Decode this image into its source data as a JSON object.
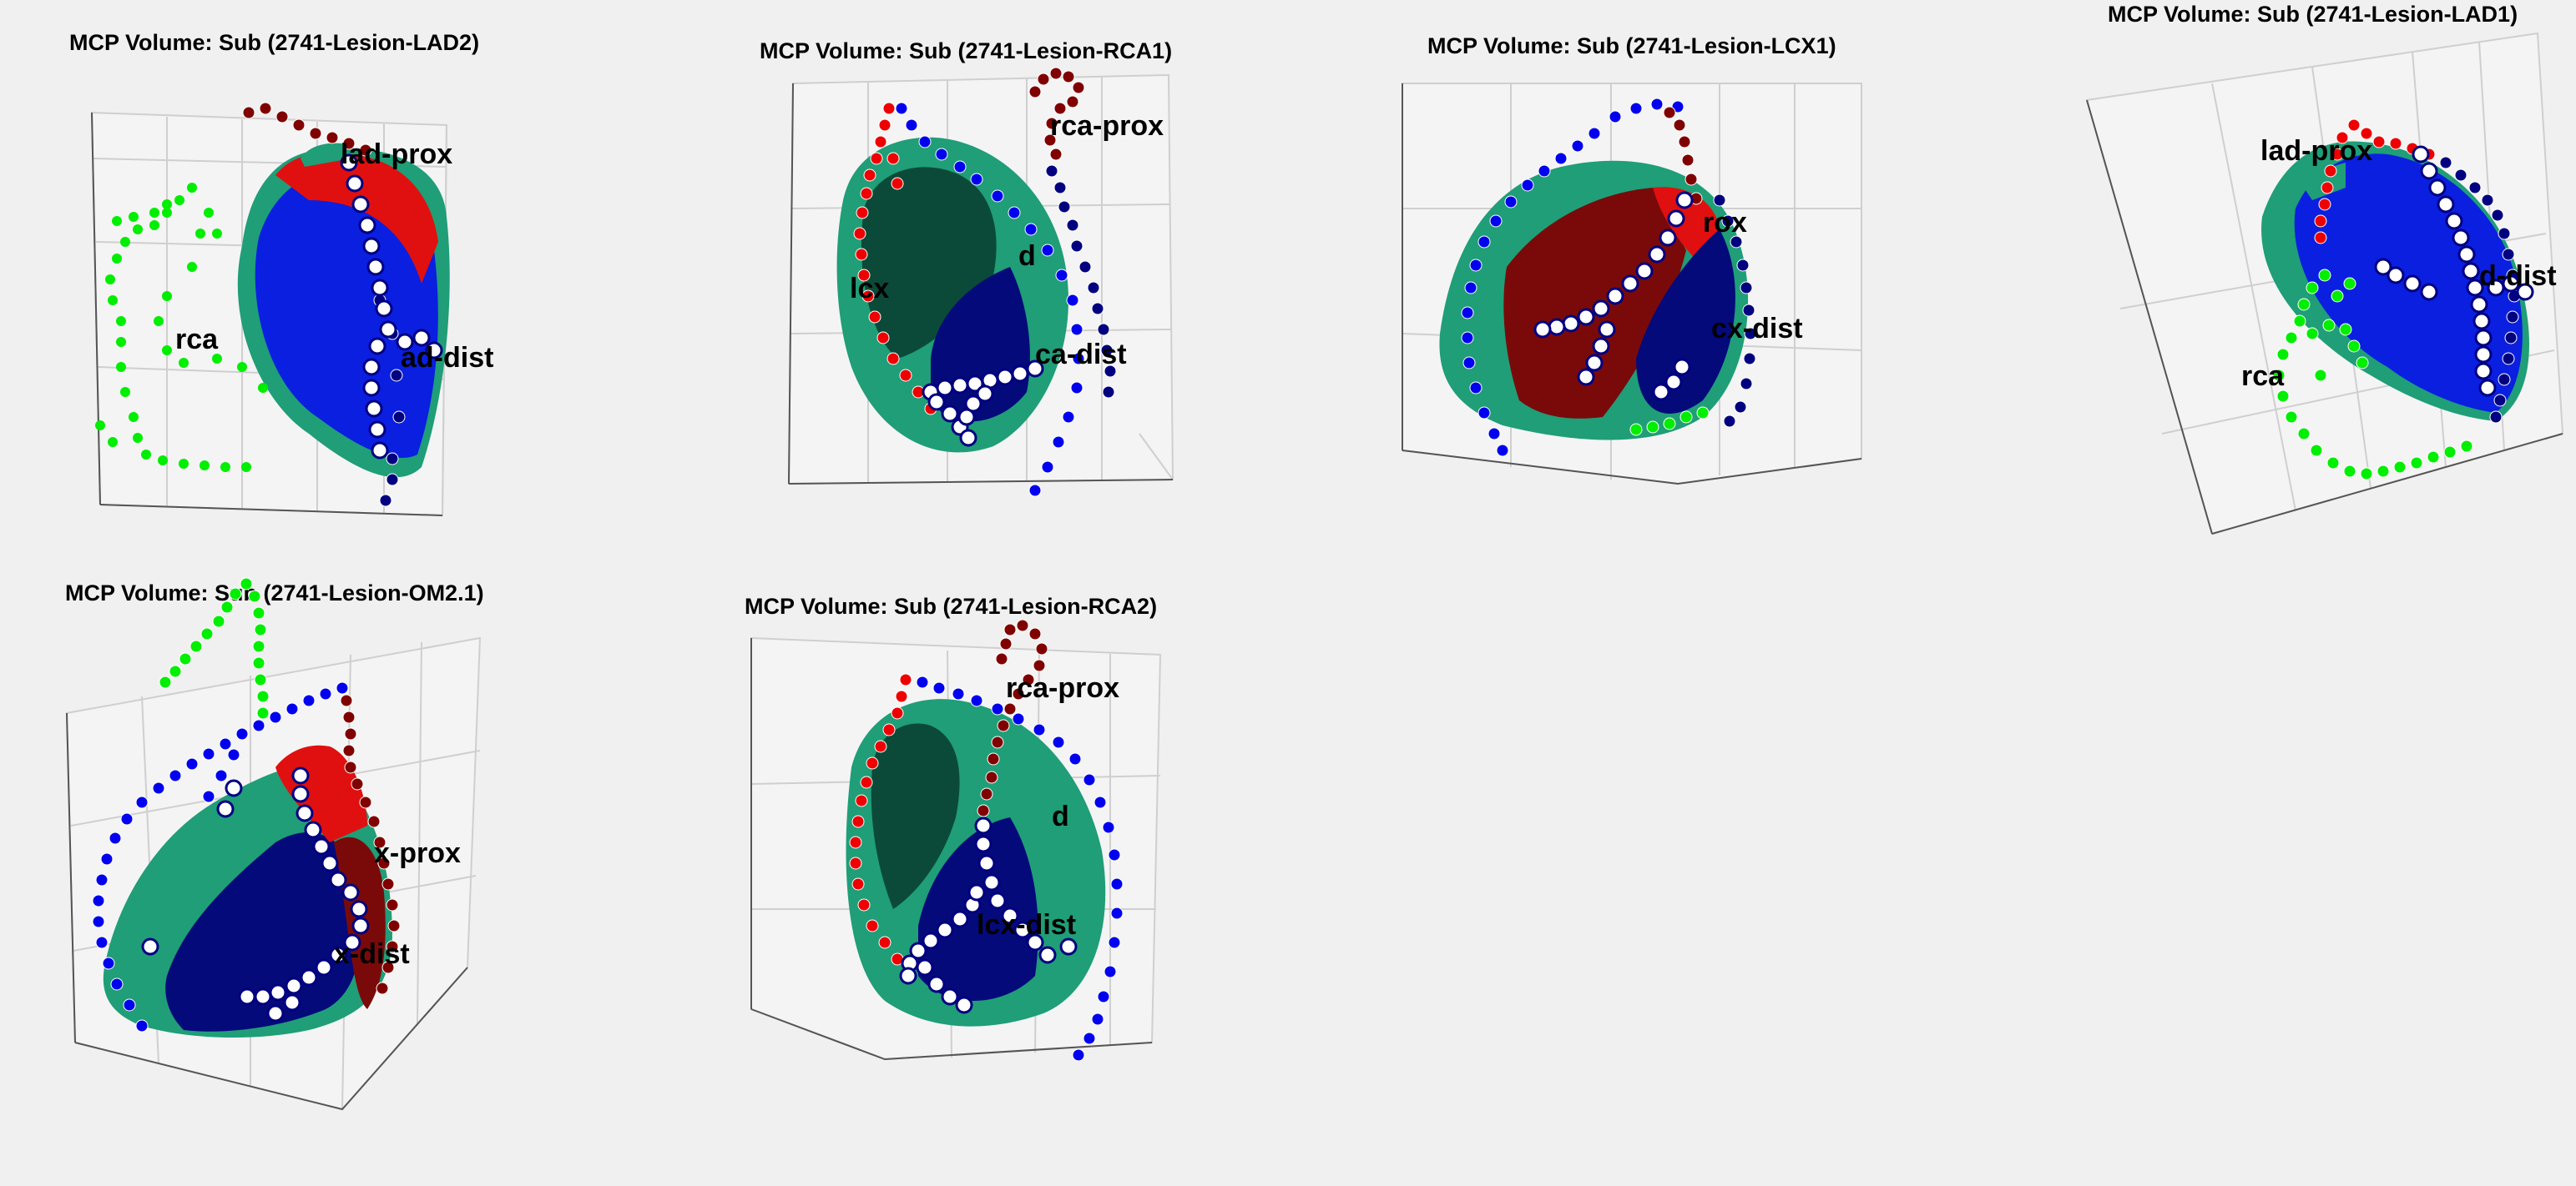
{
  "figure": {
    "background": "#f0f0f0",
    "colors": {
      "myocardium": "#1f9e78",
      "myocardium_dark": "#0b4a39",
      "territory_blue": "#0a1fe0",
      "territory_navy": "#050a7a",
      "territory_red": "#e01010",
      "territory_darkred": "#7a0a0a",
      "vessel_green": "#00ee00",
      "vessel_blue": "#0000ee",
      "vessel_navy": "#000080",
      "vessel_red": "#ee0000",
      "vessel_darkred": "#800000",
      "lesion_marker": "#ffffff"
    },
    "panels": [
      {
        "title": "MCP Volume: Sub (2741-Lesion-LAD2)",
        "labels": [
          "lad-prox",
          "rca",
          "ad-dist"
        ]
      },
      {
        "title": "MCP Volume: Sub (2741-Lesion-RCA1)",
        "labels": [
          "rca-prox",
          "lcx",
          "d",
          "ca-dist"
        ]
      },
      {
        "title": "MCP Volume: Sub (2741-Lesion-LCX1)",
        "labels": [
          "rox",
          "cx-dist"
        ]
      },
      {
        "title": "MCP Volume: Sub (2741-Lesion-LAD1)",
        "labels": [
          "lad-prox",
          "d-dist",
          "rca"
        ]
      },
      {
        "title": "MCP Volume: Sub (2741-Lesion-OM2.1)",
        "labels": [
          "x-prox",
          "x-dist"
        ]
      },
      {
        "title": "MCP Volume: Sub (2741-Lesion-RCA2)",
        "labels": [
          "rca-prox",
          "d",
          "lcx-dist"
        ]
      }
    ]
  }
}
